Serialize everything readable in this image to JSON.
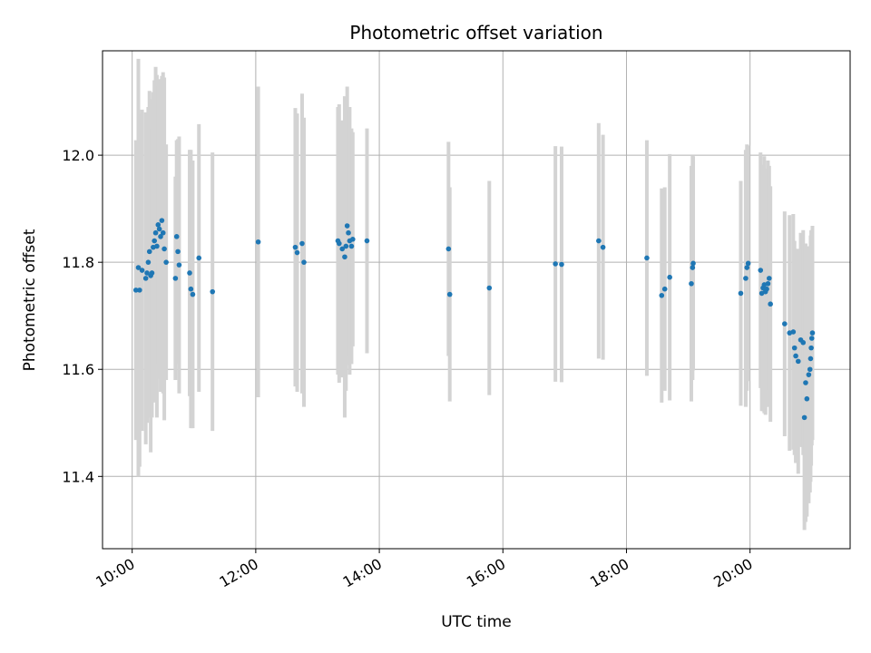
{
  "chart_data": {
    "type": "scatter",
    "title": "Photometric offset variation",
    "xlabel": "UTC time",
    "ylabel": "Photometric offset",
    "x_unit": "hour",
    "xlim": [
      9.52,
      21.62
    ],
    "ylim": [
      11.265,
      12.195
    ],
    "xticks": [
      10,
      12,
      14,
      16,
      18,
      20
    ],
    "xtick_labels": [
      "10:00",
      "12:00",
      "14:00",
      "16:00",
      "18:00",
      "20:00"
    ],
    "yticks": [
      11.4,
      11.6,
      11.8,
      12.0
    ],
    "ytick_labels": [
      "11.4",
      "11.6",
      "11.8",
      "12.0"
    ],
    "grid": true,
    "colors": {
      "points": "#1f77b4",
      "errorbars": "#d3d3d3",
      "grid": "#b0b0b0"
    },
    "series": [
      {
        "x": [
          10.06,
          10.1,
          10.12,
          10.16,
          10.22,
          10.24,
          10.26,
          10.28,
          10.3,
          10.32,
          10.34,
          10.36,
          10.38,
          10.4,
          10.42,
          10.44,
          10.46,
          10.48,
          10.5,
          10.52,
          10.55,
          10.7,
          10.72,
          10.74,
          10.76,
          10.93,
          10.95,
          10.98,
          11.08,
          11.3,
          12.04,
          12.64,
          12.67,
          12.75,
          12.78,
          13.33,
          13.35,
          13.4,
          13.44,
          13.46,
          13.48,
          13.5,
          13.52,
          13.55,
          13.57,
          13.8,
          15.12,
          15.14,
          15.78,
          16.85,
          16.95,
          17.55,
          17.62,
          18.33,
          18.57,
          18.62,
          18.7,
          19.05,
          19.07,
          19.08,
          19.85,
          19.93,
          19.95,
          19.97,
          20.17,
          20.19,
          20.21,
          20.23,
          20.25,
          20.27,
          20.29,
          20.31,
          20.33,
          20.56,
          20.64,
          20.7,
          20.72,
          20.74,
          20.78,
          20.82,
          20.86,
          20.88,
          20.9,
          20.92,
          20.95,
          20.97,
          20.98,
          20.99,
          21.0,
          21.01
        ],
        "y": [
          11.748,
          11.79,
          11.748,
          11.785,
          11.77,
          11.78,
          11.8,
          11.82,
          11.775,
          11.78,
          11.828,
          11.84,
          11.855,
          11.83,
          11.87,
          11.862,
          11.848,
          11.878,
          11.855,
          11.825,
          11.8,
          11.77,
          11.848,
          11.82,
          11.795,
          11.78,
          11.75,
          11.74,
          11.808,
          11.745,
          11.838,
          11.828,
          11.818,
          11.835,
          11.8,
          11.84,
          11.835,
          11.825,
          11.81,
          11.83,
          11.868,
          11.855,
          11.84,
          11.83,
          11.843,
          11.84,
          11.825,
          11.74,
          11.752,
          11.797,
          11.796,
          11.84,
          11.828,
          11.808,
          11.738,
          11.75,
          11.772,
          11.76,
          11.79,
          11.798,
          11.742,
          11.77,
          11.79,
          11.798,
          11.785,
          11.742,
          11.752,
          11.758,
          11.745,
          11.75,
          11.76,
          11.77,
          11.722,
          11.685,
          11.668,
          11.67,
          11.64,
          11.625,
          11.615,
          11.655,
          11.65,
          11.51,
          11.575,
          11.545,
          11.59,
          11.6,
          11.62,
          11.64,
          11.658,
          11.668
        ],
        "yerr": [
          0.28,
          0.39,
          0.33,
          0.3,
          0.31,
          0.28,
          0.29,
          0.3,
          0.33,
          0.27,
          0.29,
          0.3,
          0.31,
          0.32,
          0.26,
          0.28,
          0.29,
          0.27,
          0.3,
          0.32,
          0.22,
          0.19,
          0.18,
          0.21,
          0.24,
          0.23,
          0.26,
          0.25,
          0.25,
          0.26,
          0.29,
          0.26,
          0.26,
          0.28,
          0.27,
          0.25,
          0.26,
          0.24,
          0.3,
          0.27,
          0.26,
          0.23,
          0.25,
          0.22,
          0.2,
          0.21,
          0.2,
          0.2,
          0.2,
          0.22,
          0.22,
          0.22,
          0.21,
          0.22,
          0.2,
          0.19,
          0.23,
          0.22,
          0.21,
          0.2,
          0.21,
          0.24,
          0.23,
          0.22,
          0.22,
          0.22,
          0.23,
          0.24,
          0.23,
          0.22,
          0.23,
          0.21,
          0.22,
          0.21,
          0.22,
          0.22,
          0.2,
          0.2,
          0.21,
          0.2,
          0.21,
          0.21,
          0.26,
          0.22,
          0.24,
          0.23,
          0.23,
          0.22,
          0.2,
          0.2
        ]
      }
    ]
  }
}
